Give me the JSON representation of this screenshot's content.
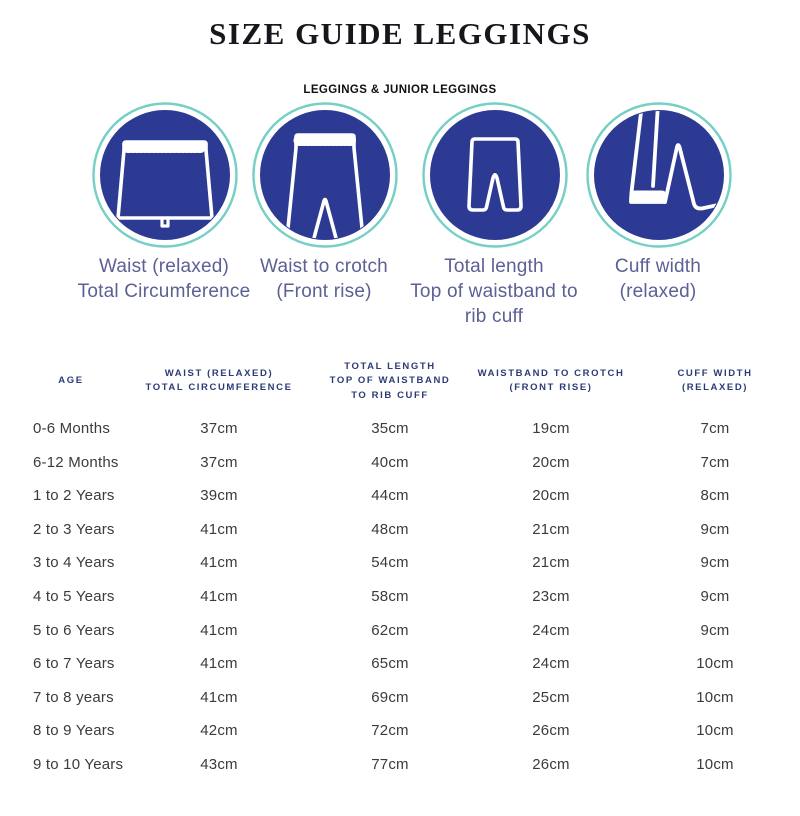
{
  "page": {
    "title": "SIZE GUIDE LEGGINGS",
    "subtitle": "LEGGINGS & JUNIOR LEGGINGS"
  },
  "colors": {
    "circle_fill": "#2d3a94",
    "circle_ring": "#74cfc5",
    "icon_stroke": "#ffffff",
    "label_text": "#5c6095",
    "header_text": "#2b3b78",
    "body_text": "#3b3b3b"
  },
  "diagrams": [
    {
      "icon": "leggings-waistband-icon",
      "label": "Waist (relaxed)\nTotal Circumference"
    },
    {
      "icon": "leggings-front-rise-icon",
      "label": "Waist to crotch\n(Front rise)"
    },
    {
      "icon": "leggings-total-length-icon",
      "label": "Total length\nTop of waistband to\nrib cuff"
    },
    {
      "icon": "leggings-cuff-icon",
      "label": "Cuff width\n(relaxed)"
    }
  ],
  "table": {
    "headers": [
      "AGE",
      "WAIST (RELAXED)\nTOTAL CIRCUMFERENCE",
      "TOTAL LENGTH\nTOP OF WAISTBAND\nTO RIB CUFF",
      "WAISTBAND TO CROTCH\n(FRONT RISE)",
      "CUFF WIDTH\n(RELAXED)"
    ],
    "rows": [
      [
        "0-6 Months",
        "37cm",
        "35cm",
        "19cm",
        "7cm"
      ],
      [
        "6-12 Months",
        "37cm",
        "40cm",
        "20cm",
        "7cm"
      ],
      [
        "1 to 2 Years",
        "39cm",
        "44cm",
        "20cm",
        "8cm"
      ],
      [
        "2 to 3 Years",
        "41cm",
        "48cm",
        "21cm",
        "9cm"
      ],
      [
        "3 to 4 Years",
        "41cm",
        "54cm",
        "21cm",
        "9cm"
      ],
      [
        "4 to 5 Years",
        "41cm",
        "58cm",
        "23cm",
        "9cm"
      ],
      [
        "5 to 6 Years",
        "41cm",
        "62cm",
        "24cm",
        "9cm"
      ],
      [
        "6 to 7 Years",
        "41cm",
        "65cm",
        "24cm",
        "10cm"
      ],
      [
        "7 to 8 years",
        "41cm",
        "69cm",
        "25cm",
        "10cm"
      ],
      [
        "8 to 9 Years",
        "42cm",
        "72cm",
        "26cm",
        "10cm"
      ],
      [
        "9 to 10 Years",
        "43cm",
        "77cm",
        "26cm",
        "10cm"
      ]
    ]
  }
}
